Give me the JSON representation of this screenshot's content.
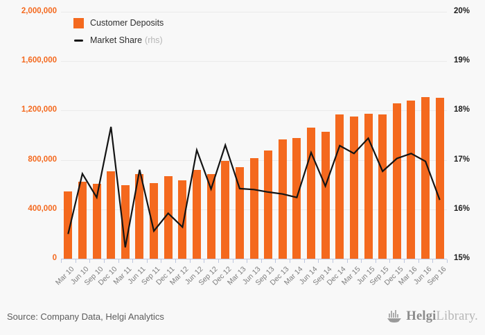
{
  "chart_data": {
    "type": "bar",
    "title": "",
    "categories": [
      "Mar 10",
      "Jun 10",
      "Sep 10",
      "Dec 10",
      "Mar 11",
      "Jun 11",
      "Sep 11",
      "Dec 11",
      "Mar 12",
      "Jun 12",
      "Sep 12",
      "Dec 12",
      "Mar 13",
      "Jun 13",
      "Sep 13",
      "Dec 13",
      "Mar 14",
      "Jun 14",
      "Sep 14",
      "Dec 14",
      "Mar 15",
      "Jun 15",
      "Sep 15",
      "Dec 15",
      "Mar 16",
      "Jun 16",
      "Sep 16"
    ],
    "series": [
      {
        "name": "Customer Deposits",
        "type": "bar",
        "axis": "left",
        "color": "#f4691e",
        "values": [
          545000,
          622000,
          604000,
          708000,
          597000,
          688000,
          610000,
          667000,
          635000,
          721000,
          684000,
          790000,
          740000,
          813000,
          878000,
          967000,
          977000,
          1060000,
          1028000,
          1167000,
          1150000,
          1176000,
          1168000,
          1258000,
          1283000,
          1309000,
          1303000
        ]
      },
      {
        "name": "Market Share (rhs)",
        "type": "line",
        "axis": "right",
        "color": "#141414",
        "values": [
          15.5,
          16.72,
          16.24,
          17.67,
          15.23,
          16.8,
          15.56,
          15.92,
          15.64,
          17.2,
          16.41,
          17.3,
          16.42,
          16.4,
          16.35,
          16.31,
          16.24,
          17.15,
          16.47,
          17.29,
          17.13,
          17.44,
          16.77,
          17.03,
          17.13,
          16.97,
          16.19
        ]
      }
    ],
    "left_axis": {
      "min": 0,
      "max": 2000000,
      "ticks": [
        "0",
        "400,000",
        "800,000",
        "1,200,000",
        "1,600,000",
        "2,000,000"
      ]
    },
    "right_axis": {
      "min": 15,
      "max": 20,
      "ticks": [
        "15%",
        "16%",
        "17%",
        "18%",
        "19%",
        "20%"
      ]
    },
    "grid": true,
    "legend_position": "top-left",
    "legend": [
      {
        "label": "Customer Deposits"
      },
      {
        "label": "Market Share",
        "suffix": "(rhs)"
      }
    ]
  },
  "footer": {
    "source": "Source: Company Data, Helgi Analytics",
    "logo": {
      "name": "Helgi",
      "suffix": "Library."
    }
  }
}
